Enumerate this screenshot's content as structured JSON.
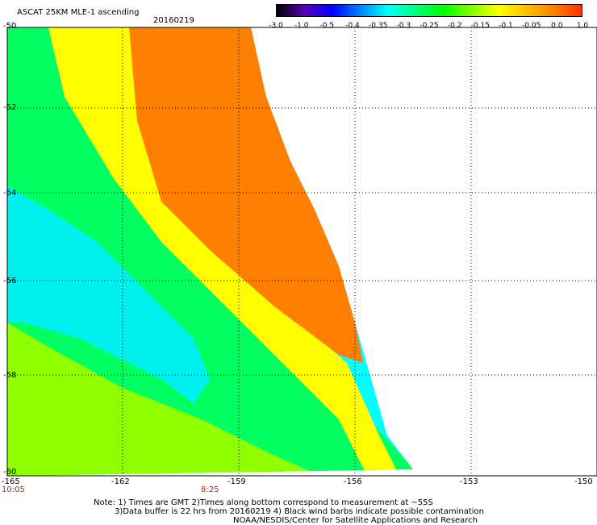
{
  "header": {
    "title": "ASCAT 25KM MLE-1 ascending",
    "date": "20160219"
  },
  "colorbar": {
    "labels": [
      "-3.0",
      "-1.0",
      "-0.5",
      "-0.4",
      "-0.35",
      "-0.3",
      "-0.25",
      "-0.2",
      "-0.15",
      "-0.1",
      "-0.05",
      "0.0",
      "1.0"
    ],
    "colors": [
      "#000000",
      "#5a00b4",
      "#0000ff",
      "#0080ff",
      "#00ffff",
      "#00ff80",
      "#00ff00",
      "#80ff00",
      "#ffff00",
      "#ffc000",
      "#ff8000",
      "#ff3000"
    ]
  },
  "axes": {
    "lat_labels": [
      "-50",
      "-52",
      "-54",
      "-56",
      "-58",
      "-60"
    ],
    "lon_labels": [
      "-165",
      "-162",
      "-159",
      "-156",
      "-153",
      "-150"
    ]
  },
  "times": {
    "left": "10:05",
    "mid": "8:25"
  },
  "notes": {
    "line1": "Note: 1) Times are GMT 2)Times along bottom correspond to measurement at ~55S",
    "line2": "3)Data buffer is 22 hrs from 20160219 4) Black wind barbs indicate possible contamination",
    "line3": "NOAA/NESDIS/Center for Satellite Applications and Research"
  },
  "map_colors": {
    "cyan": "#00f0f0",
    "green": "#00ff60",
    "lime": "#90ff00",
    "yellow": "#ffff00",
    "orange": "#ff8000"
  }
}
